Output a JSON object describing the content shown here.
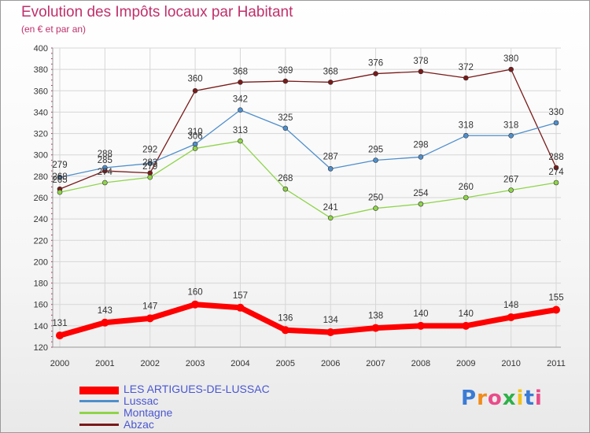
{
  "chart_data": {
    "type": "line",
    "title": "Evolution des Impôts locaux par Habitant",
    "subtitle": "(en € et par an)",
    "x": [
      "2000",
      "2001",
      "2002",
      "2003",
      "2004",
      "2005",
      "2006",
      "2007",
      "2008",
      "2009",
      "2010",
      "2011"
    ],
    "ylim": [
      120,
      400
    ],
    "yticks": [
      120,
      140,
      160,
      180,
      200,
      220,
      240,
      260,
      280,
      300,
      320,
      340,
      360,
      380,
      400
    ],
    "grid": true,
    "legend": "bottom-left",
    "series": [
      {
        "name": "LES ARTIGUES-DE-LUSSAC",
        "color": "#ff0000",
        "values": [
          131,
          143,
          147,
          160,
          157,
          136,
          134,
          138,
          140,
          140,
          148,
          155
        ]
      },
      {
        "name": "Lussac",
        "color": "#4f8fcc",
        "values": [
          279,
          288,
          292,
          310,
          342,
          325,
          287,
          295,
          298,
          318,
          318,
          330
        ]
      },
      {
        "name": "Montagne",
        "color": "#8fd44a",
        "values": [
          265,
          274,
          279,
          306,
          313,
          268,
          241,
          250,
          254,
          260,
          267,
          274
        ]
      },
      {
        "name": "Abzac",
        "color": "#7a1a1a",
        "values": [
          268,
          285,
          283,
          360,
          368,
          369,
          368,
          376,
          378,
          372,
          380,
          288
        ]
      }
    ]
  },
  "brand": "Proxiti"
}
